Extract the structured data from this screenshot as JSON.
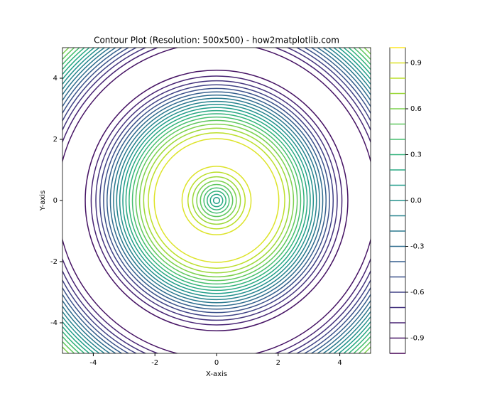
{
  "chart_data": {
    "type": "contour",
    "title": "Contour Plot (Resolution: 500x500) - how2matplotlib.com",
    "x_label": "X-axis",
    "y_label": "Y-axis",
    "xlim": [
      -5,
      5
    ],
    "ylim": [
      -5,
      5
    ],
    "xticks": [
      -4,
      -2,
      0,
      2,
      4
    ],
    "yticks": [
      -4,
      -2,
      0,
      2,
      4
    ],
    "colormap": "viridis",
    "levels": [
      -1,
      -0.9,
      -0.8,
      -0.7,
      -0.6,
      -0.5,
      -0.4,
      -0.3,
      -0.2,
      -0.1,
      0,
      0.1,
      0.2,
      0.3,
      0.4,
      0.5,
      0.6,
      0.7,
      0.8,
      0.9,
      1
    ],
    "colorbar_ticks": [
      -0.9,
      -0.6,
      -0.3,
      {
        "value": 0,
        "label": "0.0"
      },
      0.3,
      0.6,
      0.9
    ]
  }
}
